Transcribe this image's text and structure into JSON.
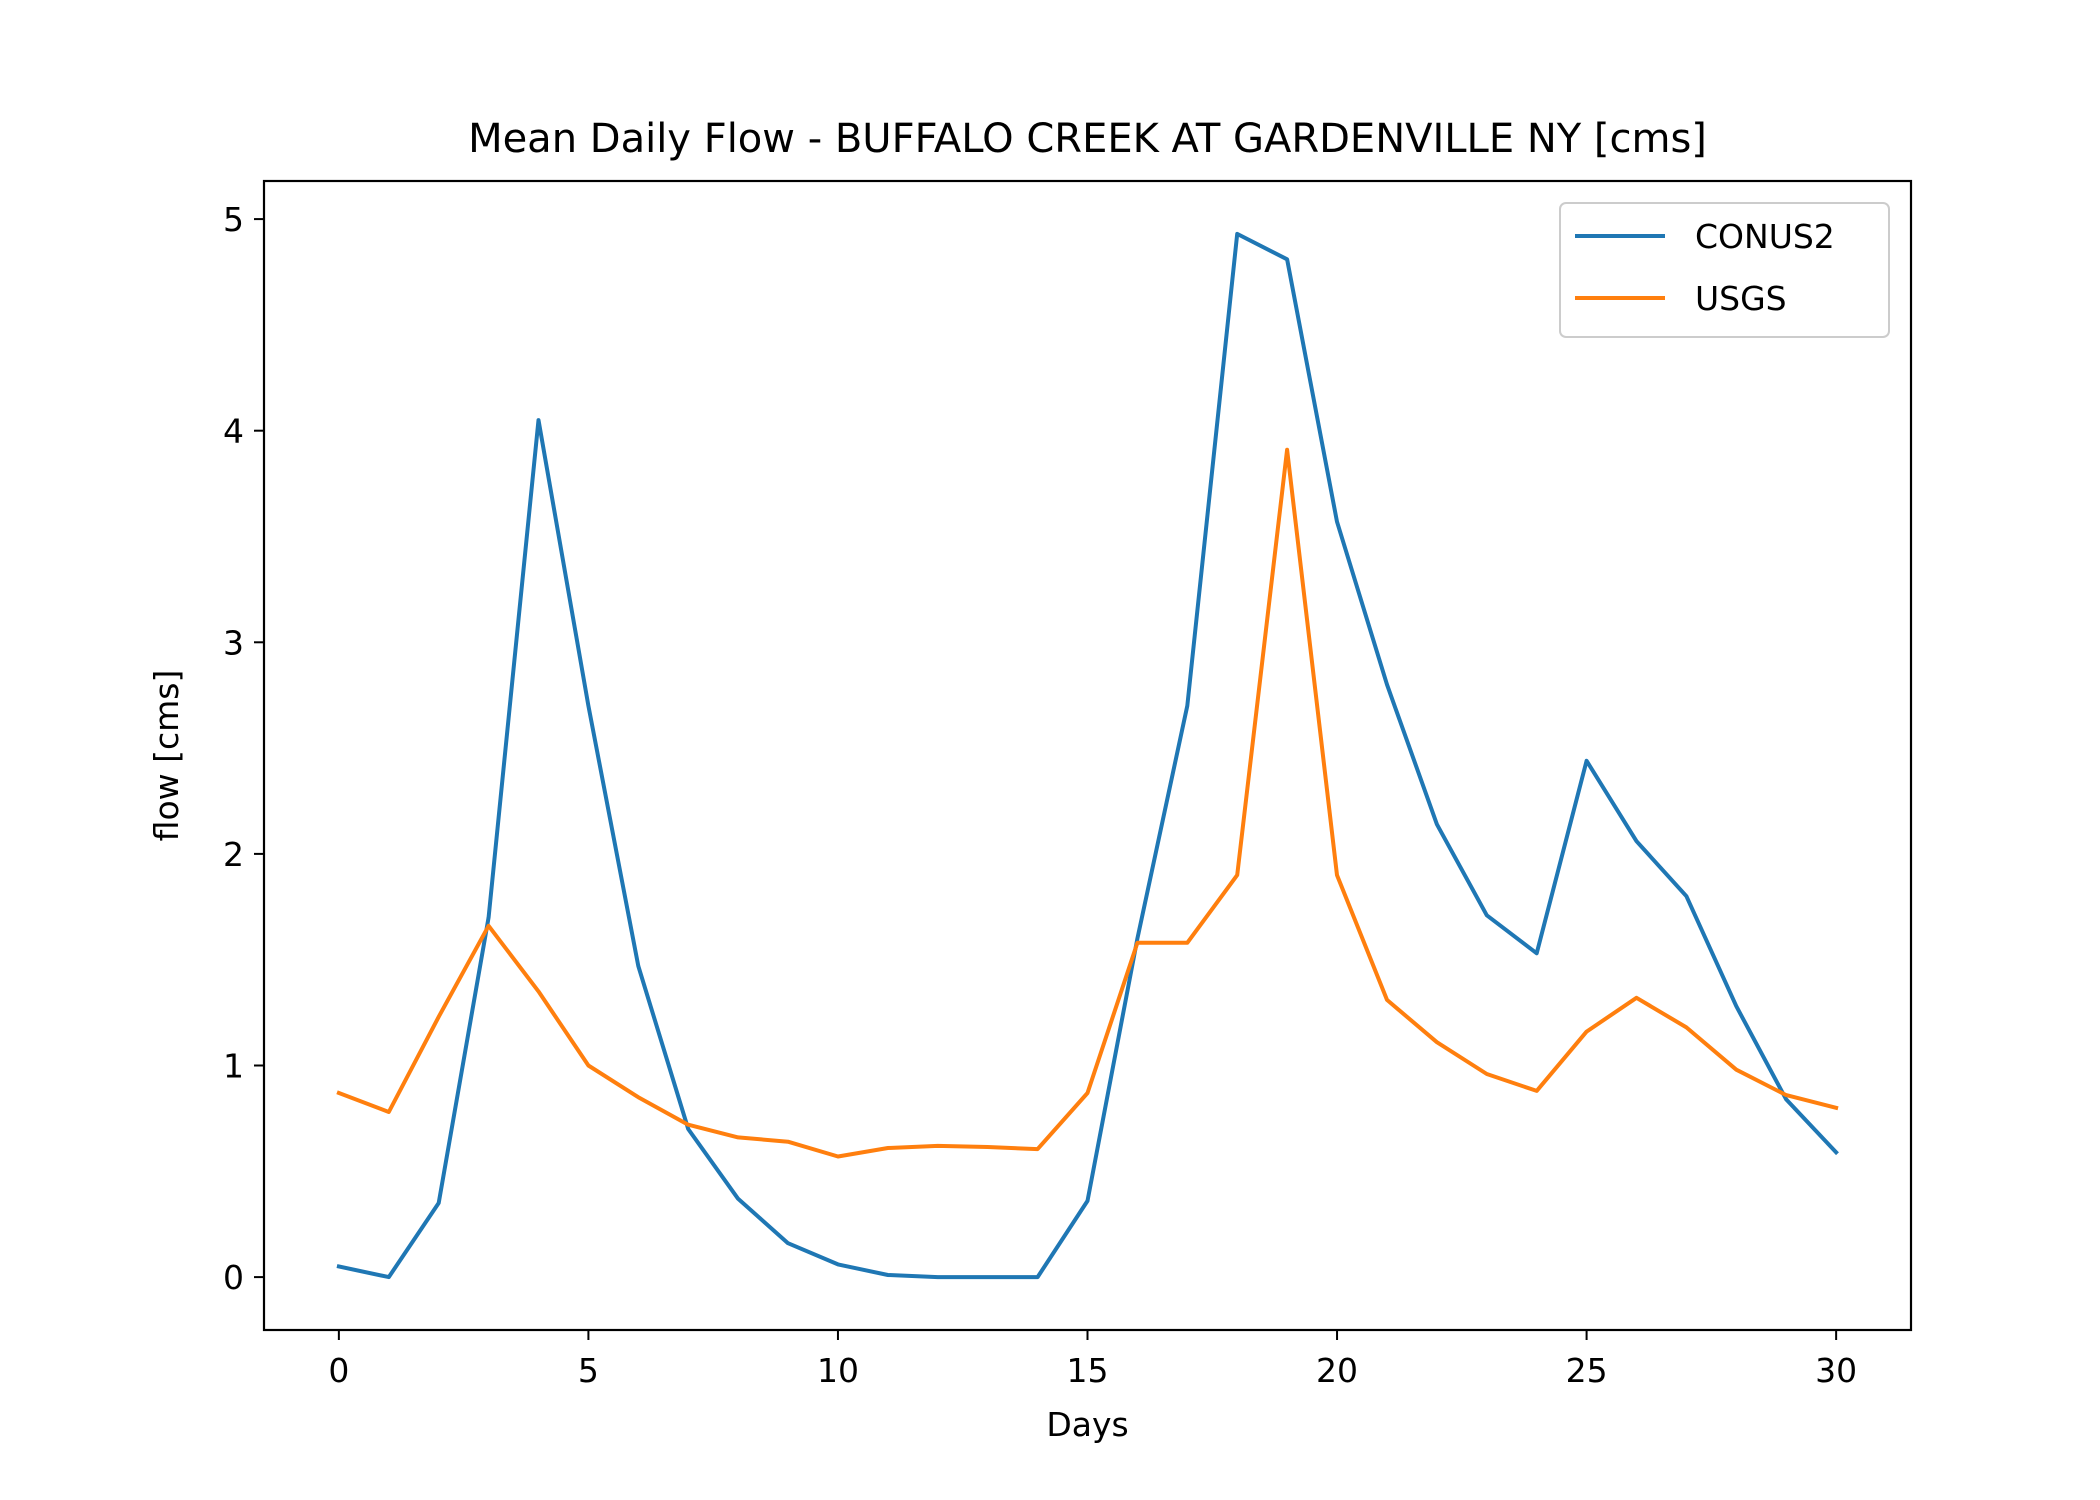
{
  "chart_data": {
    "type": "line",
    "title": "Mean Daily Flow - BUFFALO CREEK AT GARDENVILLE NY [cms]",
    "xlabel": "Days",
    "ylabel": "flow [cms]",
    "xlim": [
      -1.5,
      31.5
    ],
    "ylim": [
      -0.25,
      5.18
    ],
    "xticks": [
      0,
      5,
      10,
      15,
      20,
      25,
      30
    ],
    "yticks": [
      0,
      1,
      2,
      3,
      4,
      5
    ],
    "grid": false,
    "legend_position": "top-right",
    "x": [
      0,
      1,
      2,
      3,
      4,
      5,
      6,
      7,
      8,
      9,
      10,
      11,
      12,
      13,
      14,
      15,
      16,
      17,
      18,
      19,
      20,
      21,
      22,
      23,
      24,
      25,
      26,
      27,
      28,
      29,
      30
    ],
    "series": [
      {
        "name": "CONUS2",
        "color": "#1f77b4",
        "values": [
          0.05,
          0.0,
          0.35,
          1.7,
          4.05,
          2.7,
          1.47,
          0.7,
          0.37,
          0.16,
          0.06,
          0.01,
          0.0,
          0.0,
          0.0,
          0.36,
          1.6,
          2.7,
          4.93,
          4.81,
          3.57,
          2.8,
          2.14,
          1.71,
          1.53,
          2.44,
          2.06,
          1.8,
          1.28,
          0.84,
          0.59
        ]
      },
      {
        "name": "USGS",
        "color": "#ff7f0e",
        "values": [
          0.87,
          0.78,
          1.23,
          1.66,
          1.35,
          1.0,
          0.85,
          0.72,
          0.66,
          0.64,
          0.57,
          0.61,
          0.62,
          0.615,
          0.605,
          0.87,
          1.58,
          1.58,
          1.9,
          3.91,
          1.9,
          1.31,
          1.11,
          0.96,
          0.88,
          1.16,
          1.32,
          1.18,
          0.98,
          0.86,
          0.8
        ]
      }
    ]
  }
}
